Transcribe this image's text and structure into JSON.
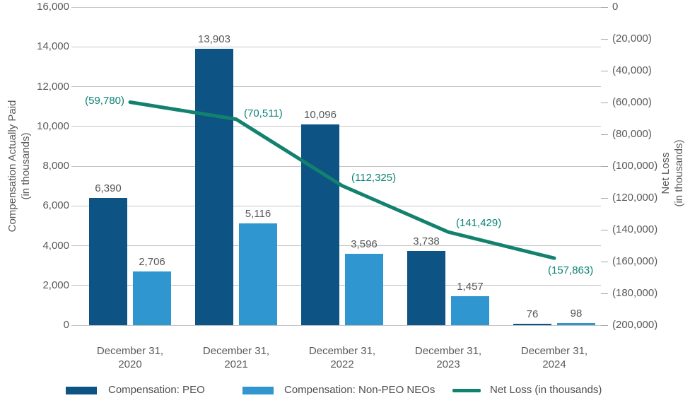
{
  "chart_data": {
    "type": "combo-bar-line",
    "categories": [
      {
        "line1": "December 31,",
        "line2": "2020"
      },
      {
        "line1": "December 31,",
        "line2": "2021"
      },
      {
        "line1": "December 31,",
        "line2": "2022"
      },
      {
        "line1": "December 31,",
        "line2": "2023"
      },
      {
        "line1": "December 31,",
        "line2": "2024"
      }
    ],
    "bar_series": [
      {
        "name": "Compensation: PEO",
        "color": "#0d5384",
        "values": [
          6390,
          13903,
          10096,
          3738,
          76
        ],
        "labels": [
          "6,390",
          "13,903",
          "10,096",
          "3,738",
          "76"
        ]
      },
      {
        "name": "Compensation: Non-PEO NEOs",
        "color": "#2f96cf",
        "values": [
          2706,
          5116,
          3596,
          1457,
          98
        ],
        "labels": [
          "2,706",
          "5,116",
          "3,596",
          "1,457",
          "98"
        ]
      }
    ],
    "line_series": {
      "name": "Net Loss (in thousands)",
      "color": "#12816e",
      "label_color": "#0b8375",
      "values": [
        -59780,
        -70511,
        -112325,
        -141429,
        -157863
      ],
      "labels": [
        "(59,780)",
        "(70,511)",
        "(112,325)",
        "(141,429)",
        "(157,863)"
      ]
    },
    "left_axis": {
      "title_line1": "Compensation Actually Paid",
      "title_line2": "(in thousands)",
      "min": 0,
      "max": 16000,
      "step": 2000,
      "tick_labels": [
        "0",
        "2,000",
        "4,000",
        "6,000",
        "8,000",
        "10,000",
        "12,000",
        "14,000",
        "16,000"
      ]
    },
    "right_axis": {
      "title_line1": "Net Loss",
      "title_line2": "(in thousands)",
      "min": -200000,
      "max": 0,
      "step": 20000,
      "tick_labels": [
        "0",
        "(20,000)",
        "(40,000)",
        "(60,000)",
        "(80,000)",
        "(100,000)",
        "(120,000)",
        "(140,000)",
        "(160,000)",
        "(180,000)",
        "(200,000)"
      ]
    },
    "legend": [
      {
        "label": "Compensation: PEO",
        "swatch": "bar"
      },
      {
        "label": "Compensation: Non-PEO NEOs",
        "swatch": "bar"
      },
      {
        "label": "Net Loss (in thousands)",
        "swatch": "line"
      }
    ],
    "layout_hints": {
      "grid": "horizontal",
      "legend_position": "bottom"
    }
  }
}
